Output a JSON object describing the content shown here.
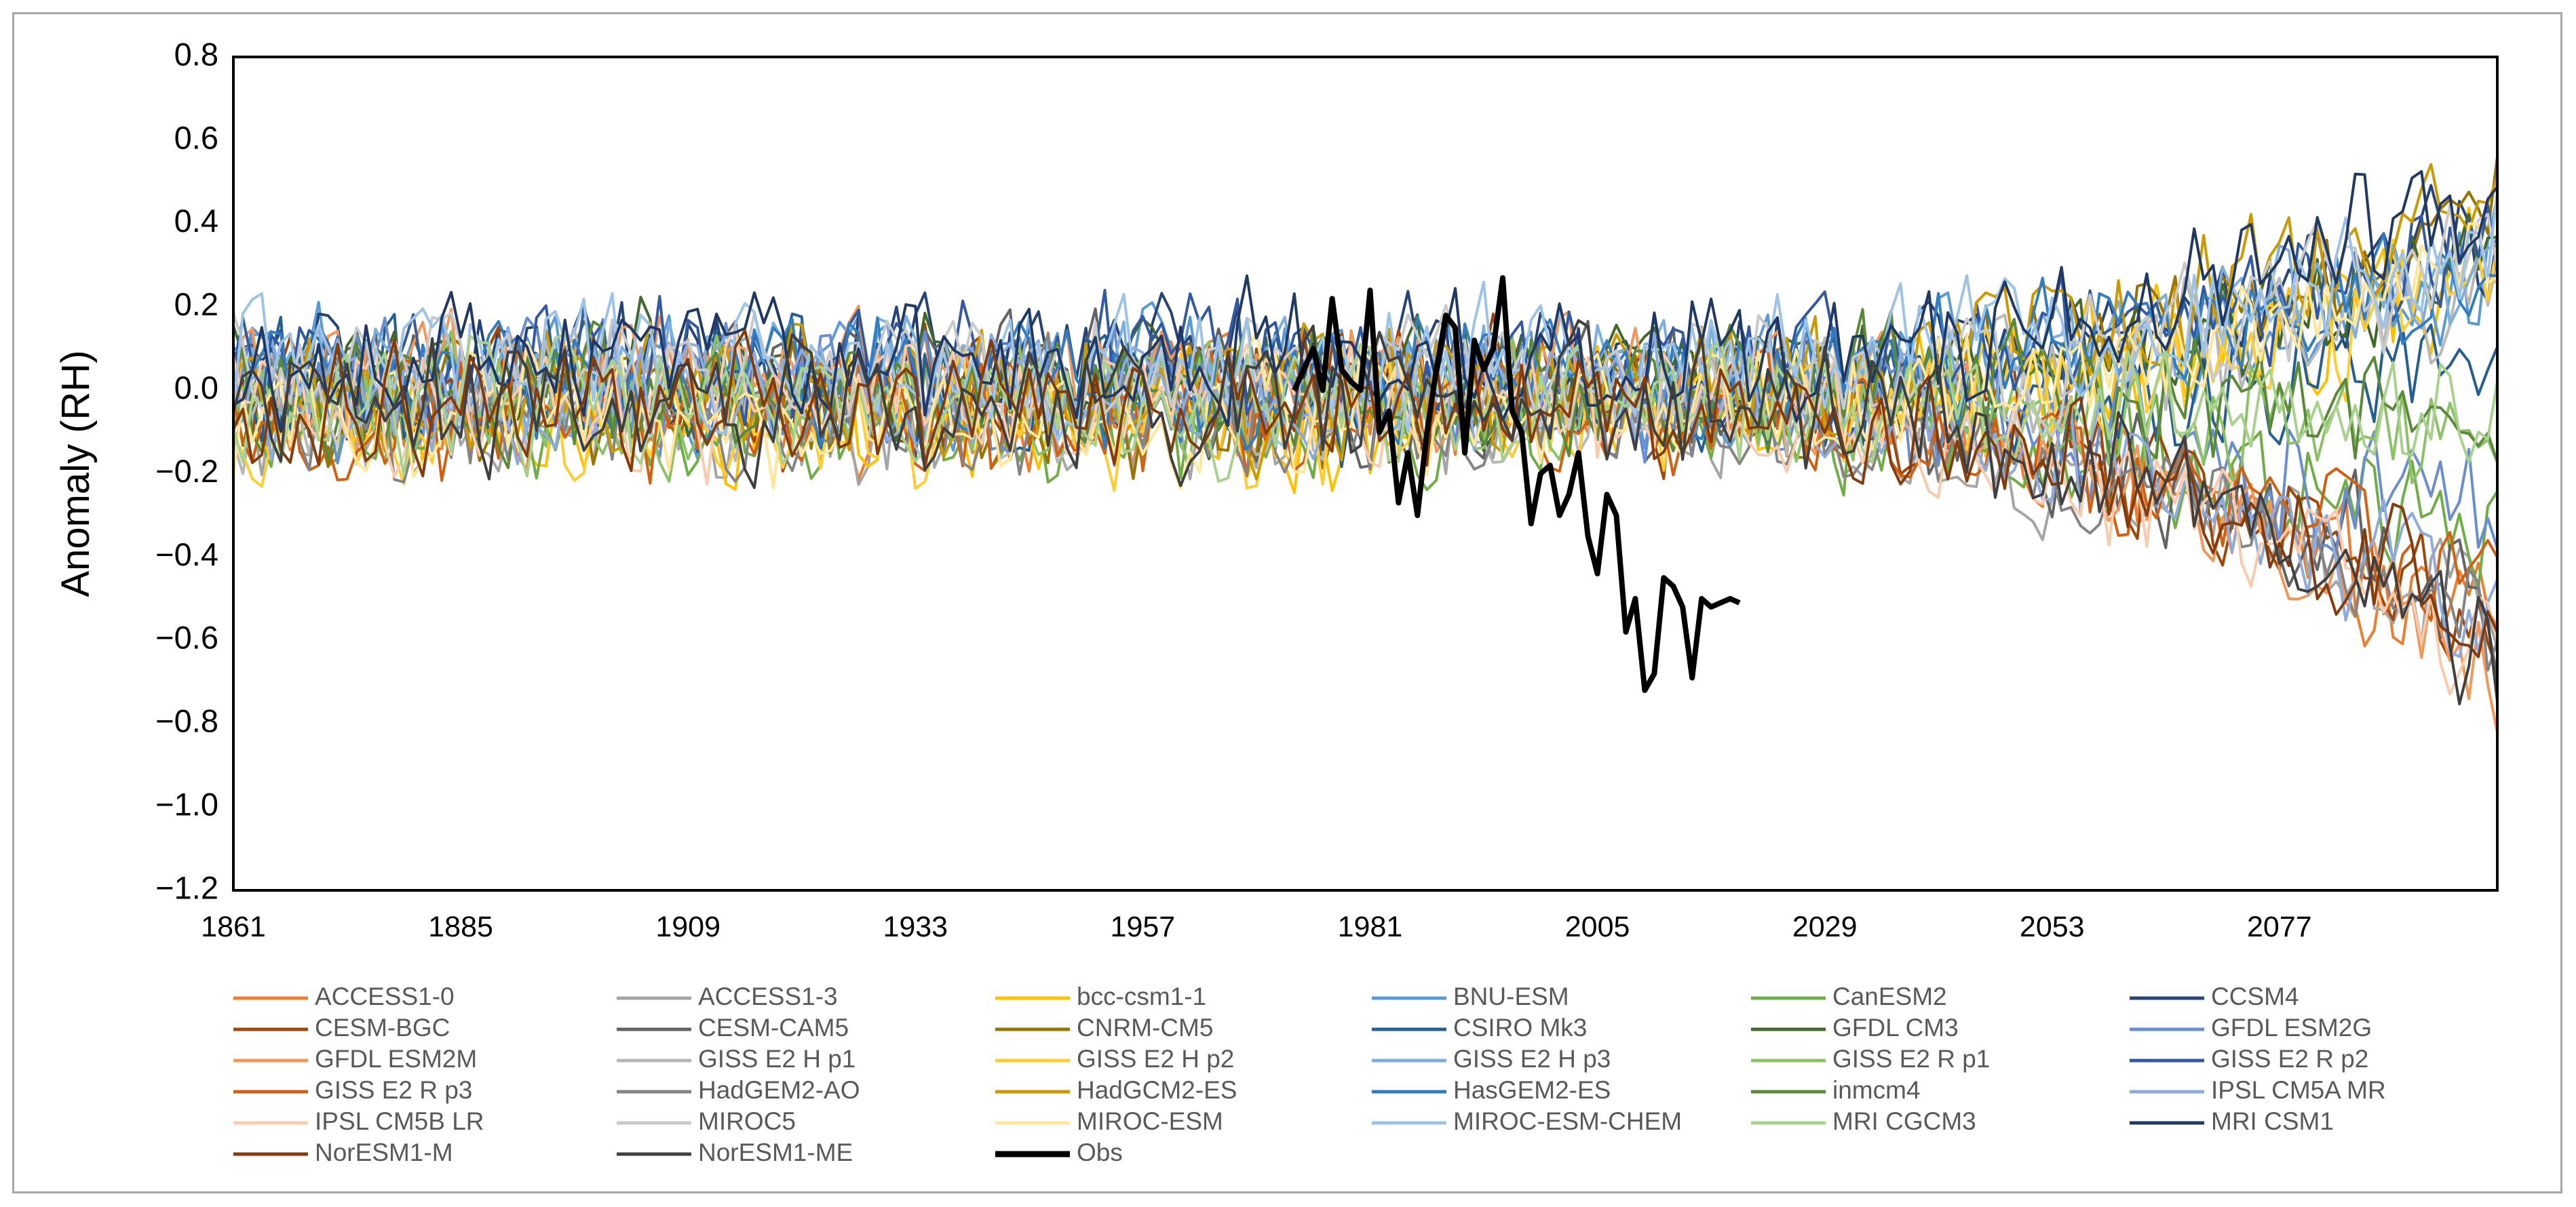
{
  "chart_data": {
    "type": "line",
    "title": "",
    "xlabel": "",
    "ylabel": "Anomaly (RH)",
    "xlim": [
      1861,
      2100
    ],
    "ylim": [
      -1.2,
      0.8
    ],
    "x_ticks": [
      1861,
      1885,
      1909,
      1933,
      1957,
      1981,
      2005,
      2029,
      2053,
      2077
    ],
    "x_tick_labels": [
      "1861",
      "1885",
      "1909",
      "1933",
      "1957",
      "1981",
      "2005",
      "2029",
      "2053",
      "2077"
    ],
    "y_ticks": [
      -1.2,
      -1.0,
      -0.8,
      -0.6,
      -0.4,
      -0.2,
      0.0,
      0.2,
      0.4,
      0.6,
      0.8
    ],
    "y_tick_labels": [
      "−1.2",
      "−1.0",
      "−0.8",
      "−0.6",
      "−0.4",
      "−0.2",
      "0.0",
      "0.2",
      "0.4",
      "0.6",
      "0.8"
    ],
    "grid": false,
    "legend_position": "bottom",
    "series": [
      {
        "name": "ACCESS1-0",
        "color": "#ED7D31",
        "trend": "down",
        "trend_end": -0.55,
        "offset": -0.05
      },
      {
        "name": "ACCESS1-3",
        "color": "#A5A5A5",
        "trend": "down",
        "trend_end": -0.5,
        "offset": -0.1
      },
      {
        "name": "bcc-csm1-1",
        "color": "#FFC000",
        "trend": "up",
        "trend_end": 0.35,
        "offset": -0.1
      },
      {
        "name": "BNU-ESM",
        "color": "#5B9BD5",
        "trend": "up",
        "trend_end": 0.25,
        "offset": 0.05
      },
      {
        "name": "CanESM2",
        "color": "#70AD47",
        "trend": "down",
        "trend_end": -0.3,
        "offset": -0.1
      },
      {
        "name": "CCSM4",
        "color": "#264478",
        "trend": "up",
        "trend_end": 0.35,
        "offset": 0.1
      },
      {
        "name": "CESM-BGC",
        "color": "#9E480E",
        "trend": "down",
        "trend_end": -0.6,
        "offset": 0.0
      },
      {
        "name": "CESM-CAM5",
        "color": "#636363",
        "trend": "down",
        "trend_end": -0.55,
        "offset": 0.0
      },
      {
        "name": "CNRM-CM5",
        "color": "#997300",
        "trend": "up",
        "trend_end": 0.45,
        "offset": -0.05
      },
      {
        "name": "CSIRO Mk3",
        "color": "#255E91",
        "trend": "flat",
        "trend_end": 0.0,
        "offset": 0.0
      },
      {
        "name": "GFDL CM3",
        "color": "#43682B",
        "trend": "up",
        "trend_end": 0.3,
        "offset": 0.05
      },
      {
        "name": "GFDL ESM2G",
        "color": "#698ED0",
        "trend": "down",
        "trend_end": -0.35,
        "offset": 0.0
      },
      {
        "name": "GFDL ESM2M",
        "color": "#F1975A",
        "trend": "down",
        "trend_end": -0.7,
        "offset": 0.05
      },
      {
        "name": "GISS E2 H p1",
        "color": "#B7B7B7",
        "trend": "up",
        "trend_end": 0.3,
        "offset": -0.05
      },
      {
        "name": "GISS E2 H p2",
        "color": "#FFCD33",
        "trend": "up",
        "trend_end": 0.35,
        "offset": -0.1
      },
      {
        "name": "GISS E2 H p3",
        "color": "#7CAFDD",
        "trend": "up",
        "trend_end": 0.3,
        "offset": 0.05
      },
      {
        "name": "GISS E2 R p1",
        "color": "#8CC168",
        "trend": "flat",
        "trend_end": -0.1,
        "offset": -0.05
      },
      {
        "name": "GISS E2 R p2",
        "color": "#335AA1",
        "trend": "up",
        "trend_end": 0.3,
        "offset": 0.1
      },
      {
        "name": "GISS E2 R p3",
        "color": "#D26012",
        "trend": "down",
        "trend_end": -0.45,
        "offset": -0.1
      },
      {
        "name": "HadGEM2-AO",
        "color": "#848484",
        "trend": "down",
        "trend_end": -0.5,
        "offset": -0.1
      },
      {
        "name": "HadGCM2-ES",
        "color": "#CC9A00",
        "trend": "up",
        "trend_end": 0.5,
        "offset": 0.0
      },
      {
        "name": "HasGEM2-ES",
        "color": "#327DC2",
        "trend": "up",
        "trend_end": 0.3,
        "offset": 0.05
      },
      {
        "name": "inmcm4",
        "color": "#5A8A39",
        "trend": "flat",
        "trend_end": -0.05,
        "offset": 0.0
      },
      {
        "name": "IPSL CM5A MR",
        "color": "#8FAADC",
        "trend": "down",
        "trend_end": -0.55,
        "offset": 0.0
      },
      {
        "name": "IPSL CM5B LR",
        "color": "#F8CBAD",
        "trend": "down",
        "trend_end": -0.6,
        "offset": -0.05
      },
      {
        "name": "MIROC5",
        "color": "#C9C9C9",
        "trend": "up",
        "trend_end": 0.3,
        "offset": 0.05
      },
      {
        "name": "MIROC-ESM",
        "color": "#FFE699",
        "trend": "up",
        "trend_end": 0.4,
        "offset": -0.1
      },
      {
        "name": "MIROC-ESM-CHEM",
        "color": "#9DC3E6",
        "trend": "up",
        "trend_end": 0.3,
        "offset": 0.1
      },
      {
        "name": "MRI CGCM3",
        "color": "#A9D18E",
        "trend": "flat",
        "trend_end": 0.0,
        "offset": -0.05
      },
      {
        "name": "MRI CSM1",
        "color": "#1F3864",
        "trend": "up",
        "trend_end": 0.4,
        "offset": 0.12
      },
      {
        "name": "NorESM1-M",
        "color": "#843C0C",
        "trend": "down",
        "trend_end": -0.5,
        "offset": -0.05
      },
      {
        "name": "NorESM1-ME",
        "color": "#404040",
        "trend": "down",
        "trend_end": -0.6,
        "offset": -0.05
      }
    ],
    "obs": {
      "name": "Obs",
      "color": "#000000",
      "x": [
        1973,
        1974,
        1975,
        1976,
        1977,
        1978,
        1979,
        1980,
        1981,
        1982,
        1983,
        1984,
        1985,
        1986,
        1987,
        1988,
        1989,
        1990,
        1991,
        1992,
        1993,
        1994,
        1995,
        1996,
        1997,
        1998,
        1999,
        2000,
        2001,
        2002,
        2003,
        2004,
        2005,
        2006,
        2007,
        2008,
        2009,
        2010,
        2011,
        2012,
        2013,
        2014,
        2015,
        2016,
        2017,
        2018,
        2019,
        2020
      ],
      "y": [
        0.0,
        0.05,
        0.1,
        0.0,
        0.22,
        0.05,
        0.02,
        0.0,
        0.24,
        -0.1,
        -0.05,
        -0.27,
        -0.15,
        -0.3,
        -0.1,
        0.05,
        0.18,
        0.15,
        -0.15,
        0.12,
        0.05,
        0.1,
        0.27,
        -0.05,
        -0.1,
        -0.32,
        -0.2,
        -0.18,
        -0.3,
        -0.25,
        -0.15,
        -0.35,
        -0.44,
        -0.25,
        -0.3,
        -0.58,
        -0.5,
        -0.72,
        -0.68,
        -0.45,
        -0.47,
        -0.52,
        -0.69,
        -0.5,
        -0.52,
        -0.51,
        -0.5,
        -0.51
      ]
    }
  }
}
